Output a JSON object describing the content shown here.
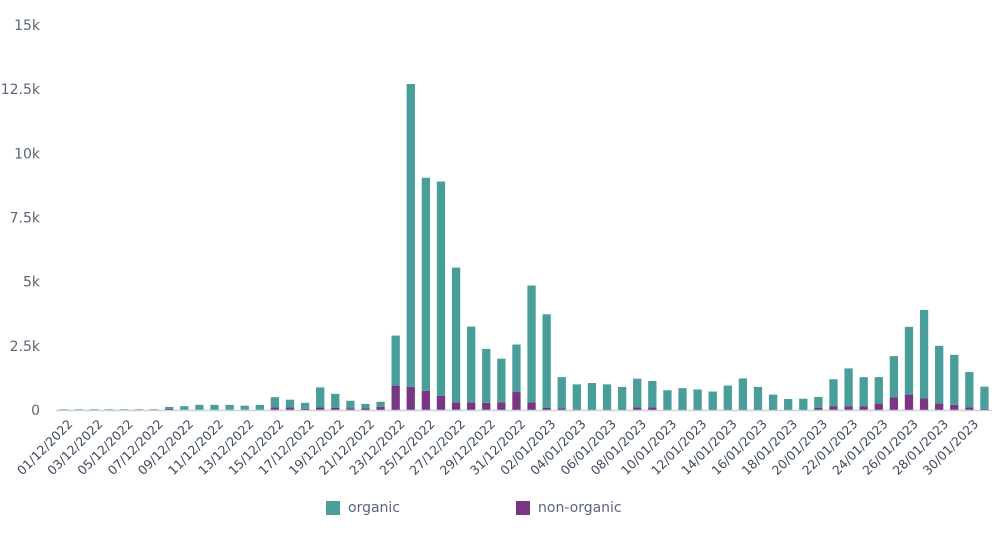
{
  "chart_data": {
    "type": "bar",
    "stacked": true,
    "title": "",
    "xlabel": "",
    "ylabel": "",
    "ylim": [
      0,
      15000
    ],
    "ytick_labels": [
      "0",
      "2.5k",
      "5k",
      "7.5k",
      "10k",
      "12.5k",
      "15k"
    ],
    "ytick_values": [
      0,
      2500,
      5000,
      7500,
      10000,
      12500,
      15000
    ],
    "categories": [
      "01/12/2022",
      "02/12/2022",
      "03/12/2022",
      "04/12/2022",
      "05/12/2022",
      "06/12/2022",
      "07/12/2022",
      "08/12/2022",
      "09/12/2022",
      "10/12/2022",
      "11/12/2022",
      "12/12/2022",
      "13/12/2022",
      "14/12/2022",
      "15/12/2022",
      "16/12/2022",
      "17/12/2022",
      "18/12/2022",
      "19/12/2022",
      "20/12/2022",
      "21/12/2022",
      "22/12/2022",
      "23/12/2022",
      "24/12/2022",
      "25/12/2022",
      "26/12/2022",
      "27/12/2022",
      "28/12/2022",
      "29/12/2022",
      "30/12/2022",
      "31/12/2022",
      "01/01/2023",
      "02/01/2023",
      "03/01/2023",
      "04/01/2023",
      "05/01/2023",
      "06/01/2023",
      "07/01/2023",
      "08/01/2023",
      "09/01/2023",
      "10/01/2023",
      "11/01/2023",
      "12/01/2023",
      "13/01/2023",
      "14/01/2023",
      "15/01/2023",
      "16/01/2023",
      "17/01/2023",
      "18/01/2023",
      "19/01/2023",
      "20/01/2023",
      "21/01/2023",
      "22/01/2023",
      "23/01/2023",
      "24/01/2023",
      "25/01/2023",
      "26/01/2023",
      "27/01/2023",
      "28/01/2023",
      "29/01/2023",
      "30/01/2023",
      "31/01/2023"
    ],
    "xtick_labels": [
      "01/12/2022",
      "03/12/2022",
      "05/12/2022",
      "07/12/2022",
      "09/12/2022",
      "11/12/2022",
      "13/12/2022",
      "15/12/2022",
      "17/12/2022",
      "19/12/2022",
      "21/12/2022",
      "23/12/2022",
      "25/12/2022",
      "27/12/2022",
      "29/12/2022",
      "31/12/2022",
      "02/01/2023",
      "04/01/2023",
      "06/01/2023",
      "08/01/2023",
      "10/01/2023",
      "12/01/2023",
      "14/01/2023",
      "16/01/2023",
      "18/01/2023",
      "20/01/2023",
      "22/01/2023",
      "24/01/2023",
      "26/01/2023",
      "28/01/2023",
      "30/01/2023"
    ],
    "series": [
      {
        "name": "non-organic",
        "color": "#7b3585",
        "values": [
          0,
          0,
          0,
          0,
          0,
          0,
          0,
          40,
          10,
          10,
          10,
          10,
          10,
          10,
          100,
          100,
          50,
          100,
          80,
          60,
          60,
          120,
          950,
          900,
          750,
          550,
          300,
          300,
          280,
          300,
          700,
          300,
          80,
          60,
          20,
          20,
          20,
          20,
          100,
          100,
          20,
          20,
          20,
          20,
          20,
          20,
          20,
          20,
          20,
          20,
          80,
          150,
          150,
          150,
          250,
          500,
          600,
          450,
          250,
          200,
          100,
          50
        ]
      },
      {
        "name": "organic",
        "color": "#4a9e9a",
        "values": [
          30,
          30,
          30,
          30,
          30,
          30,
          30,
          80,
          140,
          190,
          190,
          190,
          160,
          190,
          400,
          300,
          230,
          780,
          550,
          300,
          180,
          200,
          1950,
          11800,
          8300,
          8350,
          5250,
          2950,
          2100,
          1700,
          1850,
          4550,
          3650,
          1220,
          980,
          1030,
          980,
          880,
          1120,
          1030,
          750,
          830,
          780,
          700,
          930,
          1210,
          880,
          580,
          410,
          420,
          430,
          1050,
          1470,
          1130,
          1030,
          1600,
          2640,
          3450,
          2250,
          1950,
          1380,
          860
        ]
      }
    ],
    "legend": {
      "placement": "bottom-center"
    }
  },
  "legend": {
    "organic_label": "organic",
    "non_organic_label": "non-organic"
  }
}
